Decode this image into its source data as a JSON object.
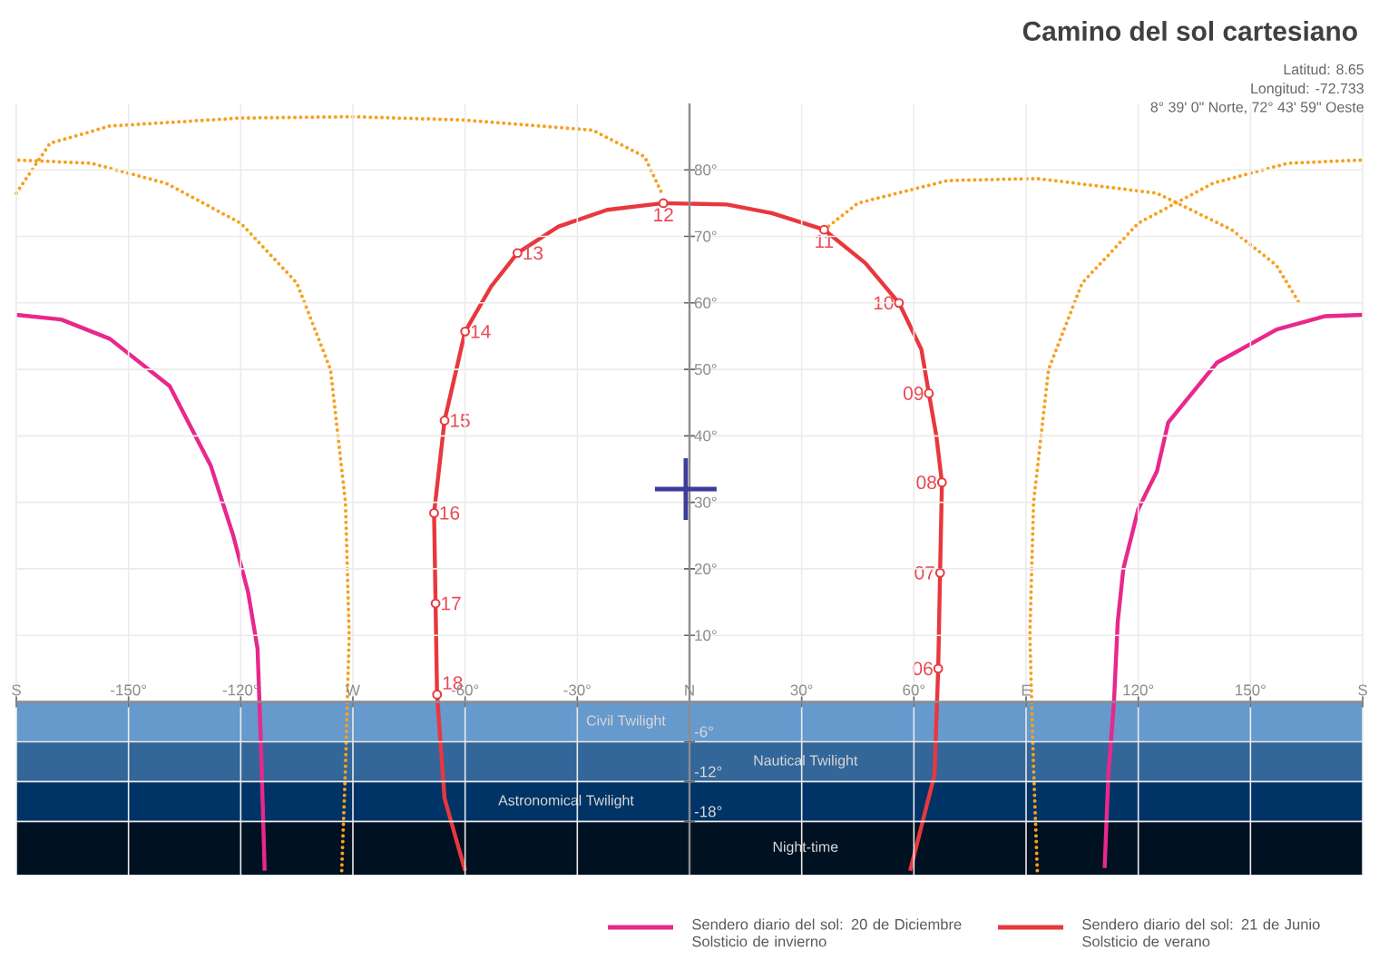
{
  "chart_data": {
    "type": "line",
    "title": "Camino del sol cartesiano",
    "subtitle": "Latitud: 8.65",
    "annotations": [
      "Longitud: -72.733",
      "8° 39' 0\" Norte, 72° 43' 59\" Oeste",
      {
        "text": "06",
        "x": 66.5,
        "y": 5
      },
      {
        "text": "07",
        "x": 67,
        "y": 19.4
      },
      {
        "text": "08",
        "x": 67.5,
        "y": 33
      },
      {
        "text": "09",
        "x": 64,
        "y": 46.4
      },
      {
        "text": "10",
        "x": 56,
        "y": 60
      },
      {
        "text": "11",
        "x": 36,
        "y": 71
      },
      {
        "text": "12",
        "x": -7,
        "y": 75
      },
      {
        "text": "13",
        "x": -46,
        "y": 67.5
      },
      {
        "text": "14",
        "x": -60,
        "y": 55.7
      },
      {
        "text": "15",
        "x": -65.5,
        "y": 42.3
      },
      {
        "text": "16",
        "x": -68.3,
        "y": 28.4
      },
      {
        "text": "17",
        "x": -67.9,
        "y": 14.8
      },
      {
        "text": "18",
        "x": -67.5,
        "y": 1.1
      }
    ],
    "xlim": [
      -180,
      180
    ],
    "ylim": [
      -26,
      90
    ],
    "xticks": [
      {
        "value": -180,
        "label": "S"
      },
      {
        "value": -150,
        "label": "-150°"
      },
      {
        "value": -120,
        "label": "-120°"
      },
      {
        "value": -90,
        "label": "W"
      },
      {
        "value": -60,
        "label": "-60°"
      },
      {
        "value": -30,
        "label": "-30°"
      },
      {
        "value": 0,
        "label": "N"
      },
      {
        "value": 30,
        "label": "30°"
      },
      {
        "value": 60,
        "label": "60°"
      },
      {
        "value": 90,
        "label": "E"
      },
      {
        "value": 120,
        "label": "120°"
      },
      {
        "value": 150,
        "label": "150°"
      },
      {
        "value": 180,
        "label": "S"
      }
    ],
    "yticks": [
      {
        "value": -18,
        "label": "-18°"
      },
      {
        "value": -12,
        "label": "-12°"
      },
      {
        "value": -6,
        "label": "-6°"
      },
      {
        "value": 10,
        "label": "10°"
      },
      {
        "value": 20,
        "label": "20°"
      },
      {
        "value": 30,
        "label": "30°"
      },
      {
        "value": 40,
        "label": "40°"
      },
      {
        "value": 50,
        "label": "50°"
      },
      {
        "value": 60,
        "label": "60°"
      },
      {
        "value": 70,
        "label": "70°"
      },
      {
        "value": 80,
        "label": "80°"
      }
    ],
    "grid": true,
    "legend": "bottom",
    "bands": [
      {
        "axis": "y",
        "from": 0,
        "to": -6,
        "label": "Civil Twilight",
        "color": "#6699cc"
      },
      {
        "axis": "y",
        "from": -6,
        "to": -12,
        "label": "Nautical Twilight",
        "color": "#336699"
      },
      {
        "axis": "y",
        "from": -12,
        "to": -18,
        "label": "Astronomical Twilight",
        "color": "#003366"
      },
      {
        "axis": "y",
        "from": -18,
        "to": -26,
        "label": "Night-time",
        "color": "#001122"
      }
    ],
    "series": [
      {
        "name": "Sendero diario del sol: 20 de Diciembre Solsticio de invierno",
        "color": "#e8288c",
        "x": [
          -180,
          -168,
          -155,
          -139,
          -128,
          -122,
          -118,
          -115.5,
          -114.5,
          -113.6,
          0,
          111,
          112,
          113.5,
          114.5,
          116,
          120,
          125,
          128,
          141,
          157,
          170,
          180
        ],
        "values": [
          58.2,
          57.5,
          54.6,
          47.5,
          35.5,
          25,
          16.4,
          8,
          -8,
          -25.4,
          null,
          -25,
          -11,
          0,
          12,
          20,
          29,
          34.7,
          42,
          51,
          56,
          58,
          58.2
        ]
      },
      {
        "name": "Sendero diario del sol: 21 de Junio Solsticio de verano",
        "color": "#e8383d",
        "x": [
          -60,
          -65.5,
          -67.5,
          -67.9,
          -68.3,
          -65.5,
          -60,
          -53,
          -46,
          -35,
          -22,
          -7,
          10,
          22,
          36,
          47,
          56,
          62,
          64,
          66,
          67.5,
          67,
          66.5,
          65.5,
          59
        ],
        "values": [
          -25.4,
          -14.5,
          1.1,
          14.8,
          28.4,
          42.3,
          55.7,
          62.5,
          67.5,
          71.5,
          74,
          75,
          74.8,
          73.5,
          71,
          66,
          60,
          53,
          46.4,
          40,
          33,
          19.4,
          5,
          -11,
          -25.4
        ]
      },
      {
        "type": "line",
        "color": "#f7a01e",
        "line_style": "dotted",
        "x": [
          -93,
          -92,
          -91,
          -92,
          -96,
          -105,
          -120,
          -140,
          -160,
          -180,
          0,
          93,
          92,
          91,
          92,
          96,
          105,
          120,
          140,
          160,
          180
        ],
        "values": [
          -25.4,
          -10,
          10,
          30,
          50,
          63,
          72,
          78,
          81,
          81.5,
          null,
          -25.4,
          -10,
          10,
          30,
          50,
          63,
          72,
          78,
          81,
          81.5
        ]
      },
      {
        "type": "line",
        "color": "#f7a01e",
        "line_style": "dotted",
        "x": [
          -180,
          -171,
          -155,
          -120,
          -90,
          -60,
          -26,
          -12,
          -7
        ],
        "values": [
          76.5,
          84,
          86.6,
          87.8,
          88,
          87.5,
          86,
          82,
          76
        ]
      },
      {
        "type": "line",
        "color": "#f7a01e",
        "line_style": "dotted",
        "x": [
          36,
          45,
          69,
          93,
          125,
          145,
          157,
          163
        ],
        "values": [
          71,
          75,
          78.4,
          78.7,
          76.5,
          71,
          65.6,
          60
        ]
      },
      {
        "type": "scatter",
        "color": "#e8383d",
        "marker": "circle",
        "x": [
          66.5,
          67,
          67.5,
          64,
          56,
          36,
          -7,
          -46,
          -60,
          -65.5,
          -68.3,
          -67.9,
          -67.5
        ],
        "values": [
          5,
          19.4,
          33,
          46.4,
          60,
          71,
          75,
          67.5,
          55.7,
          42.3,
          28.4,
          14.8,
          1.1
        ]
      },
      {
        "type": "scatter",
        "color": "#3c3c9e",
        "marker": "cross",
        "x": [
          -1
        ],
        "values": [
          32
        ]
      }
    ]
  }
}
